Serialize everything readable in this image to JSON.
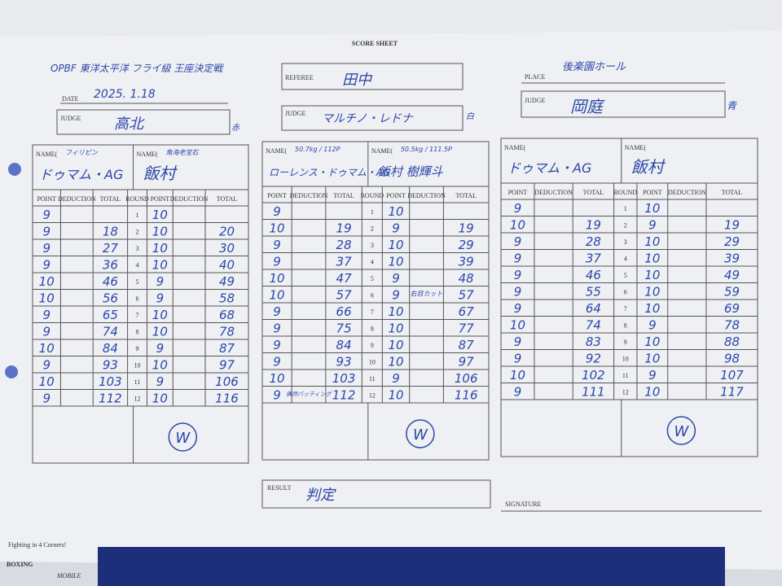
{
  "header": {
    "sheet_title": "SCORE SHEET",
    "event": "OPBF 東洋太平洋 フライ級 王座決定戦",
    "date_label": "DATE",
    "date": "2025. 1.18",
    "judge1_label": "JUDGE",
    "judge1": "高北",
    "judge1_corner": "赤",
    "referee_label": "REFEREE",
    "referee": "田中",
    "judge2_label": "JUDGE",
    "judge2": "マルチノ・レドナ",
    "judge2_corner": "白",
    "place_label": "PLACE",
    "place": "後楽園ホール",
    "judge3_label": "JUDGE",
    "judge3": "岡庭",
    "judge3_corner": "青"
  },
  "columns": [
    "POINT",
    "DEDUCTION",
    "TOTAL",
    "ROUND",
    "POINT",
    "DEDUCTION",
    "TOTAL"
  ],
  "name_label": "NAME(",
  "rounds": [
    1,
    2,
    3,
    4,
    5,
    6,
    7,
    8,
    9,
    10,
    11,
    12
  ],
  "cards": [
    {
      "red_note": "フィリピン",
      "red_name": "ドゥマム・AG",
      "blue_note": "角海老宝石",
      "blue_name": "飯村",
      "red_points": [
        9,
        9,
        9,
        9,
        10,
        10,
        9,
        9,
        10,
        9,
        10,
        9
      ],
      "red_totals": [
        18,
        27,
        36,
        46,
        56,
        65,
        74,
        84,
        93,
        103,
        112
      ],
      "blue_points": [
        10,
        10,
        10,
        10,
        9,
        9,
        10,
        10,
        9,
        10,
        9,
        10
      ],
      "blue_totals": [
        20,
        30,
        40,
        49,
        58,
        68,
        78,
        87,
        97,
        106,
        116
      ],
      "winner": "W"
    },
    {
      "red_note": "50.7kg / 112P",
      "red_name": "ローレンス・ドゥマム・AG",
      "blue_note": "50.5kg / 111.5P",
      "blue_name": "飯村 樹輝斗",
      "red_points": [
        9,
        10,
        9,
        9,
        10,
        10,
        9,
        9,
        9,
        9,
        10,
        9
      ],
      "red_totals": [
        19,
        28,
        37,
        47,
        57,
        66,
        75,
        84,
        93,
        103,
        112
      ],
      "blue_points": [
        10,
        9,
        10,
        10,
        9,
        9,
        10,
        10,
        10,
        10,
        9,
        10
      ],
      "blue_totals": [
        19,
        29,
        39,
        48,
        57,
        67,
        77,
        87,
        97,
        106,
        116
      ],
      "blue_deduction_r6": "右目カット",
      "red_deduction_r12": "偶然バッティング",
      "winner": "W"
    },
    {
      "red_name": "ドゥマム・AG",
      "blue_name": "飯村",
      "red_points": [
        9,
        10,
        9,
        9,
        9,
        9,
        9,
        10,
        9,
        9,
        10,
        9
      ],
      "red_totals": [
        19,
        28,
        37,
        46,
        55,
        64,
        74,
        83,
        92,
        102,
        111
      ],
      "blue_points": [
        10,
        9,
        10,
        10,
        10,
        10,
        10,
        9,
        10,
        10,
        9,
        10
      ],
      "blue_totals": [
        19,
        29,
        39,
        49,
        59,
        69,
        78,
        88,
        98,
        107,
        117
      ],
      "winner": "W"
    }
  ],
  "footer": {
    "result_label": "RESULT",
    "result": "判定",
    "signature_label": "SIGNATURE"
  },
  "watermark": {
    "tagline": "Fighting in 4 Corners!",
    "brand": "BOXING",
    "sub": "MOBILE"
  }
}
